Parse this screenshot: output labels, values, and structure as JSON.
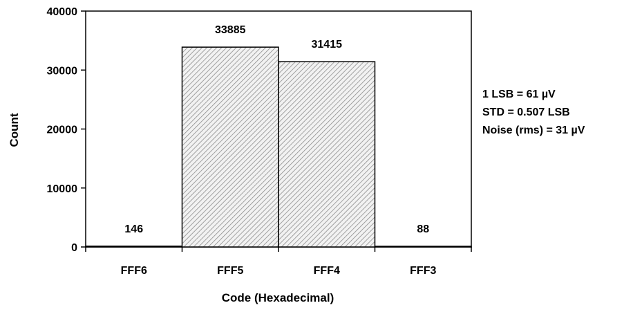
{
  "chart_data": {
    "type": "bar",
    "categories": [
      "FFF6",
      "FFF5",
      "FFF4",
      "FFF3"
    ],
    "values": [
      146,
      33885,
      31415,
      88
    ],
    "data_labels": [
      "146",
      "33885",
      "31415",
      "88"
    ],
    "xlabel": "Code (Hexadecimal)",
    "ylabel": "Count",
    "ylim": [
      0,
      40000
    ],
    "yticks": [
      0,
      10000,
      20000,
      30000,
      40000
    ],
    "ytick_labels": [
      "0",
      "10000",
      "20000",
      "30000",
      "40000"
    ],
    "grid": false,
    "bar_fill": "diagonal hatch",
    "colors": {
      "bar_stroke": "#000000",
      "hatch": "#8c8c8c",
      "bar_bg": "#f2f2f2"
    }
  },
  "annotations": {
    "lsb": "1 LSB = 61 µV",
    "std": "STD = 0.507 LSB",
    "noise": "Noise (rms) = 31 µV"
  }
}
